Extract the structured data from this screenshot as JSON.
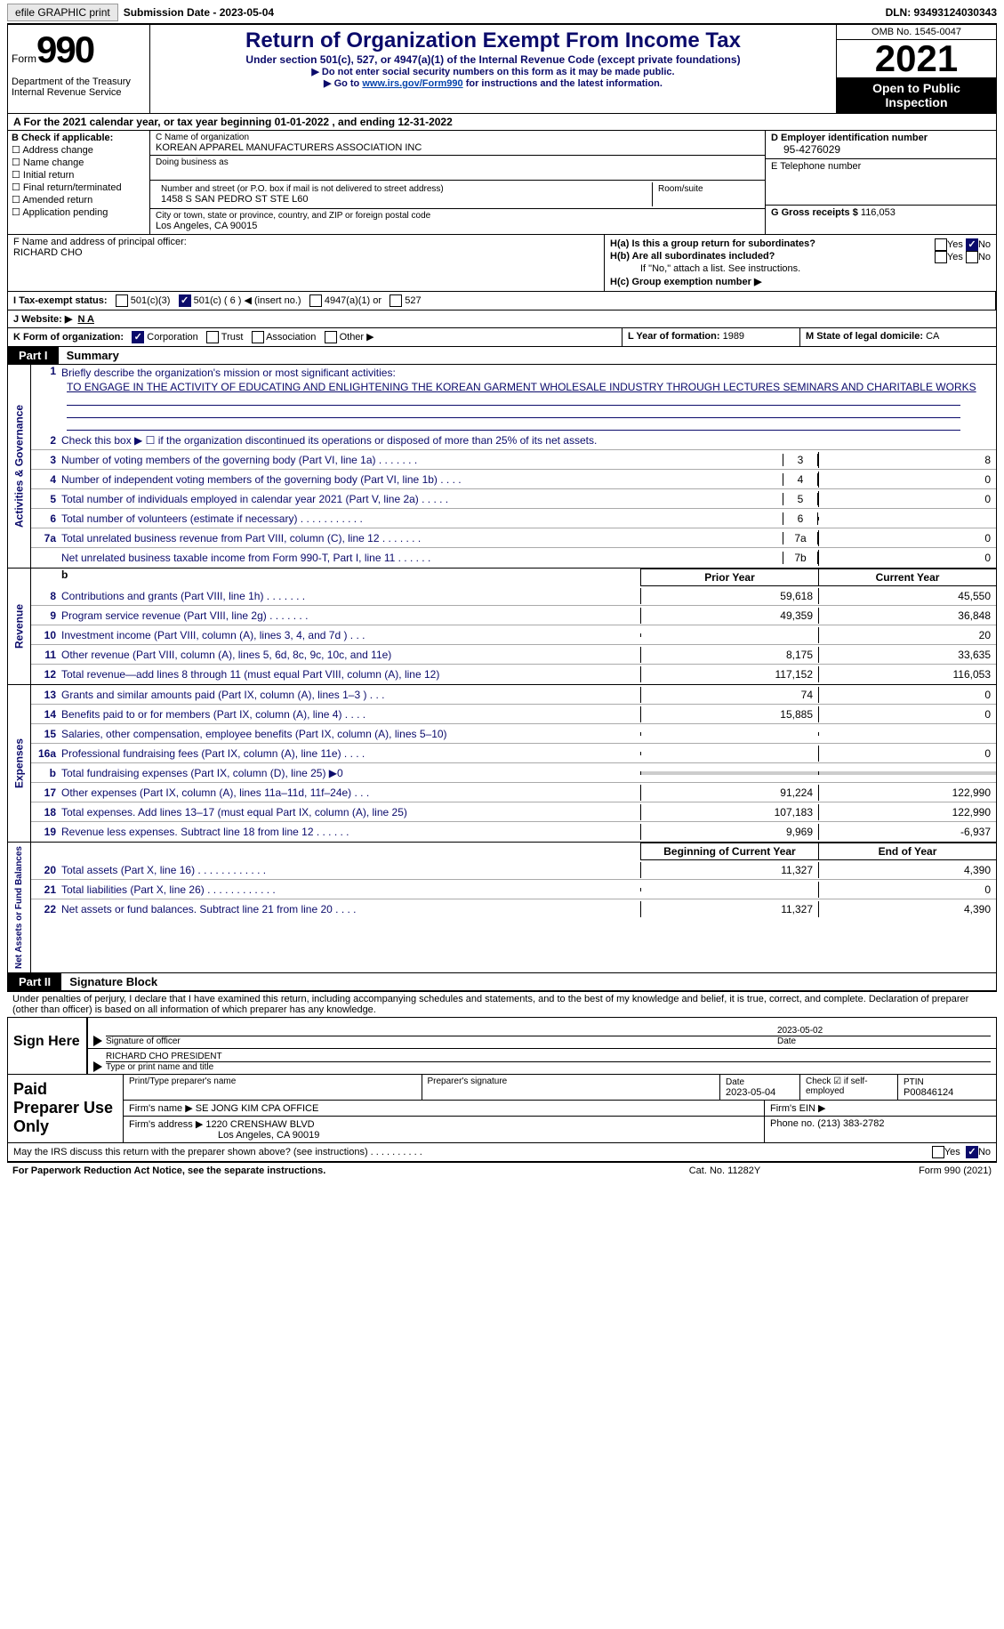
{
  "top": {
    "efile_btn": "efile GRAPHIC print",
    "submission_label": "Submission Date - 2023-05-04",
    "dln_label": "DLN: 93493124030343"
  },
  "header": {
    "form_prefix": "Form",
    "form_number": "990",
    "dept": "Department of the Treasury\nInternal Revenue Service",
    "title": "Return of Organization Exempt From Income Tax",
    "subtitle": "Under section 501(c), 527, or 4947(a)(1) of the Internal Revenue Code (except private foundations)",
    "note1": "▶ Do not enter social security numbers on this form as it may be made public.",
    "note2_pre": "▶ Go to ",
    "note2_link": "www.irs.gov/Form990",
    "note2_post": " for instructions and the latest information.",
    "omb": "OMB No. 1545-0047",
    "year": "2021",
    "otpi": "Open to Public Inspection"
  },
  "row_a": "A  For the 2021 calendar year, or tax year beginning 01-01-2022    , and ending 12-31-2022",
  "col_b": {
    "label": "B Check if applicable:",
    "opts": [
      "Address change",
      "Name change",
      "Initial return",
      "Final return/terminated",
      "Amended return",
      "Application pending"
    ]
  },
  "col_c": {
    "name_label": "C Name of organization",
    "name": "KOREAN APPAREL MANUFACTURERS ASSOCIATION INC",
    "dba_label": "Doing business as",
    "street_label": "Number and street (or P.O. box if mail is not delivered to street address)",
    "room_label": "Room/suite",
    "street": "1458 S SAN PEDRO ST STE L60",
    "city_label": "City or town, state or province, country, and ZIP or foreign postal code",
    "city": "Los Angeles, CA  90015"
  },
  "col_d": {
    "ein_label": "D Employer identification number",
    "ein": "95-4276029",
    "tel_label": "E Telephone number",
    "gross_label": "G Gross receipts $",
    "gross": "116,053"
  },
  "section_f": {
    "label": "F Name and address of principal officer:",
    "name": "RICHARD CHO",
    "ha": "H(a)  Is this a group return for subordinates?",
    "hb": "H(b)  Are all subordinates included?",
    "hb_note": "If \"No,\" attach a list. See instructions.",
    "hc": "H(c)  Group exemption number ▶",
    "yes": "Yes",
    "no": "No"
  },
  "row_i": {
    "label": "I   Tax-exempt status:",
    "o1": "501(c)(3)",
    "o2": "501(c) ( 6 ) ◀ (insert no.)",
    "o3": "4947(a)(1) or",
    "o4": "527"
  },
  "row_j": {
    "label": "J   Website: ▶",
    "value": "N A"
  },
  "row_k": {
    "label": "K Form of organization:",
    "o1": "Corporation",
    "o2": "Trust",
    "o3": "Association",
    "o4": "Other ▶",
    "l_label": "L Year of formation:",
    "l_val": "1989",
    "m_label": "M State of legal domicile:",
    "m_val": "CA"
  },
  "part1": {
    "header": "Part I",
    "title": "Summary",
    "line1_label": "Briefly describe the organization's mission or most significant activities:",
    "mission": "TO ENGAGE IN THE ACTIVITY OF EDUCATING AND ENLIGHTENING THE KOREAN GARMENT WHOLESALE INDUSTRY THROUGH LECTURES SEMINARS AND CHARITABLE WORKS",
    "line2": "Check this box ▶ ☐ if the organization discontinued its operations or disposed of more than 25% of its net assets.",
    "lines_gov": [
      {
        "n": "3",
        "d": "Number of voting members of the governing body (Part VI, line 1a)   .    .    .    .    .    .    .",
        "box": "3",
        "v": "8"
      },
      {
        "n": "4",
        "d": "Number of independent voting members of the governing body (Part VI, line 1b)  .    .    .    .",
        "box": "4",
        "v": "0"
      },
      {
        "n": "5",
        "d": "Total number of individuals employed in calendar year 2021 (Part V, line 2a)  .    .    .    .    .",
        "box": "5",
        "v": "0"
      },
      {
        "n": "6",
        "d": "Total number of volunteers (estimate if necessary)    .    .    .    .    .    .    .    .    .    .    .",
        "box": "6",
        "v": ""
      },
      {
        "n": "7a",
        "d": "Total unrelated business revenue from Part VIII, column (C), line 12   .    .    .    .    .    .    .",
        "box": "7a",
        "v": "0"
      },
      {
        "n": "",
        "d": "Net unrelated business taxable income from Form 990-T, Part I, line 11  .    .    .    .    .    .",
        "box": "7b",
        "v": "0"
      }
    ],
    "prior_head": "Prior Year",
    "curr_head": "Current Year",
    "lines_rev": [
      {
        "n": "8",
        "d": "Contributions and grants (Part VIII, line 1h)   .    .    .    .    .    .    .",
        "p": "59,618",
        "c": "45,550"
      },
      {
        "n": "9",
        "d": "Program service revenue (Part VIII, line 2g)   .    .    .    .    .    .    .",
        "p": "49,359",
        "c": "36,848"
      },
      {
        "n": "10",
        "d": "Investment income (Part VIII, column (A), lines 3, 4, and 7d )   .    .    .",
        "p": "",
        "c": "20"
      },
      {
        "n": "11",
        "d": "Other revenue (Part VIII, column (A), lines 5, 6d, 8c, 9c, 10c, and 11e)",
        "p": "8,175",
        "c": "33,635"
      },
      {
        "n": "12",
        "d": "Total revenue—add lines 8 through 11 (must equal Part VIII, column (A), line 12)",
        "p": "117,152",
        "c": "116,053"
      }
    ],
    "lines_exp": [
      {
        "n": "13",
        "d": "Grants and similar amounts paid (Part IX, column (A), lines 1–3 )  .    .    .",
        "p": "74",
        "c": "0"
      },
      {
        "n": "14",
        "d": "Benefits paid to or for members (Part IX, column (A), line 4)  .    .    .    .",
        "p": "15,885",
        "c": "0"
      },
      {
        "n": "15",
        "d": "Salaries, other compensation, employee benefits (Part IX, column (A), lines 5–10)",
        "p": "",
        "c": ""
      },
      {
        "n": "16a",
        "d": "Professional fundraising fees (Part IX, column (A), line 11e)  .    .    .    .",
        "p": "",
        "c": "0"
      },
      {
        "n": "b",
        "d": "Total fundraising expenses (Part IX, column (D), line 25) ▶0",
        "p": "gray",
        "c": "gray"
      },
      {
        "n": "17",
        "d": "Other expenses (Part IX, column (A), lines 11a–11d, 11f–24e)   .    .    .",
        "p": "91,224",
        "c": "122,990"
      },
      {
        "n": "18",
        "d": "Total expenses. Add lines 13–17 (must equal Part IX, column (A), line 25)",
        "p": "107,183",
        "c": "122,990"
      },
      {
        "n": "19",
        "d": "Revenue less expenses. Subtract line 18 from line 12  .    .    .    .    .    .",
        "p": "9,969",
        "c": "-6,937"
      }
    ],
    "boy_head": "Beginning of Current Year",
    "eoy_head": "End of Year",
    "lines_net": [
      {
        "n": "20",
        "d": "Total assets (Part X, line 16)  .    .    .    .    .    .    .    .    .    .    .    .",
        "p": "11,327",
        "c": "4,390"
      },
      {
        "n": "21",
        "d": "Total liabilities (Part X, line 26) .    .    .    .    .    .    .    .    .    .    .    .",
        "p": "",
        "c": "0"
      },
      {
        "n": "22",
        "d": "Net assets or fund balances. Subtract line 21 from line 20  .    .    .    .",
        "p": "11,327",
        "c": "4,390"
      }
    ],
    "tab_gov": "Activities & Governance",
    "tab_rev": "Revenue",
    "tab_exp": "Expenses",
    "tab_net": "Net Assets or Fund Balances"
  },
  "part2": {
    "header": "Part II",
    "title": "Signature Block",
    "declaration": "Under penalties of perjury, I declare that I have examined this return, including accompanying schedules and statements, and to the best of my knowledge and belief, it is true, correct, and complete. Declaration of preparer (other than officer) is based on all information of which preparer has any knowledge.",
    "sign_here": "Sign Here",
    "sig_officer": "Signature of officer",
    "sig_date": "2023-05-02",
    "date_lbl": "Date",
    "officer_name": "RICHARD CHO  PRESIDENT",
    "type_lbl": "Type or print name and title",
    "prep_title": "Paid Preparer Use Only",
    "print_lbl": "Print/Type preparer's name",
    "prep_sig_lbl": "Preparer's signature",
    "prep_date_lbl": "Date",
    "prep_date": "2023-05-04",
    "check_lbl": "Check ☑ if self-employed",
    "ptin_lbl": "PTIN",
    "ptin": "P00846124",
    "firm_name_lbl": "Firm's name    ▶",
    "firm_name": "SE JONG KIM CPA OFFICE",
    "firm_ein_lbl": "Firm's EIN ▶",
    "firm_addr_lbl": "Firm's address ▶",
    "firm_addr": "1220 CRENSHAW BLVD",
    "firm_city": "Los Angeles, CA  90019",
    "phone_lbl": "Phone no.",
    "phone": "(213) 383-2782",
    "discuss": "May the IRS discuss this return with the preparer shown above? (see instructions)   .    .    .    .    .    .    .    .    .    .",
    "yes": "Yes",
    "no": "No"
  },
  "footer": {
    "pra": "For Paperwork Reduction Act Notice, see the separate instructions.",
    "cat": "Cat. No. 11282Y",
    "form": "Form 990 (2021)"
  }
}
